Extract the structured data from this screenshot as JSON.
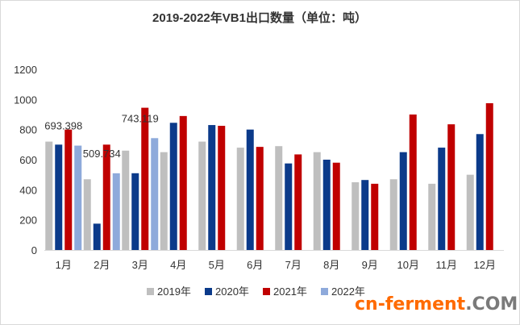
{
  "chart_data": {
    "type": "bar",
    "title": "2019-2022年VB1出口数量（单位：吨）",
    "categories": [
      "1月",
      "2月",
      "3月",
      "4月",
      "5月",
      "6月",
      "7月",
      "8月",
      "9月",
      "10月",
      "11月",
      "12月"
    ],
    "ylim": [
      0,
      1200
    ],
    "yticks": [
      0,
      200,
      400,
      600,
      800,
      1000,
      1200
    ],
    "grid": false,
    "legend": "bottom",
    "series": [
      {
        "name": "2019年",
        "color": "#bfbfbf",
        "values": [
          720,
          470,
          660,
          650,
          720,
          680,
          690,
          650,
          450,
          470,
          440,
          500
        ]
      },
      {
        "name": "2020年",
        "color": "#0b3a8a",
        "values": [
          700,
          175,
          510,
          845,
          830,
          800,
          575,
          600,
          465,
          650,
          680,
          770
        ]
      },
      {
        "name": "2021年",
        "color": "#c00000",
        "values": [
          800,
          700,
          945,
          890,
          825,
          685,
          635,
          580,
          440,
          900,
          835,
          975
        ]
      },
      {
        "name": "2022年",
        "color": "#8eaadb",
        "values": [
          693.398,
          509.734,
          743.119,
          null,
          null,
          null,
          null,
          null,
          null,
          null,
          null,
          null
        ]
      }
    ],
    "data_labels": [
      {
        "category": "1月",
        "series": "2022年",
        "text": "693.398"
      },
      {
        "category": "2月",
        "series": "2022年",
        "text": "509.734"
      },
      {
        "category": "3月",
        "series": "2022年",
        "text": "743.119"
      }
    ]
  },
  "watermark": {
    "main": "cn-ferment",
    "suffix": ".COM"
  }
}
